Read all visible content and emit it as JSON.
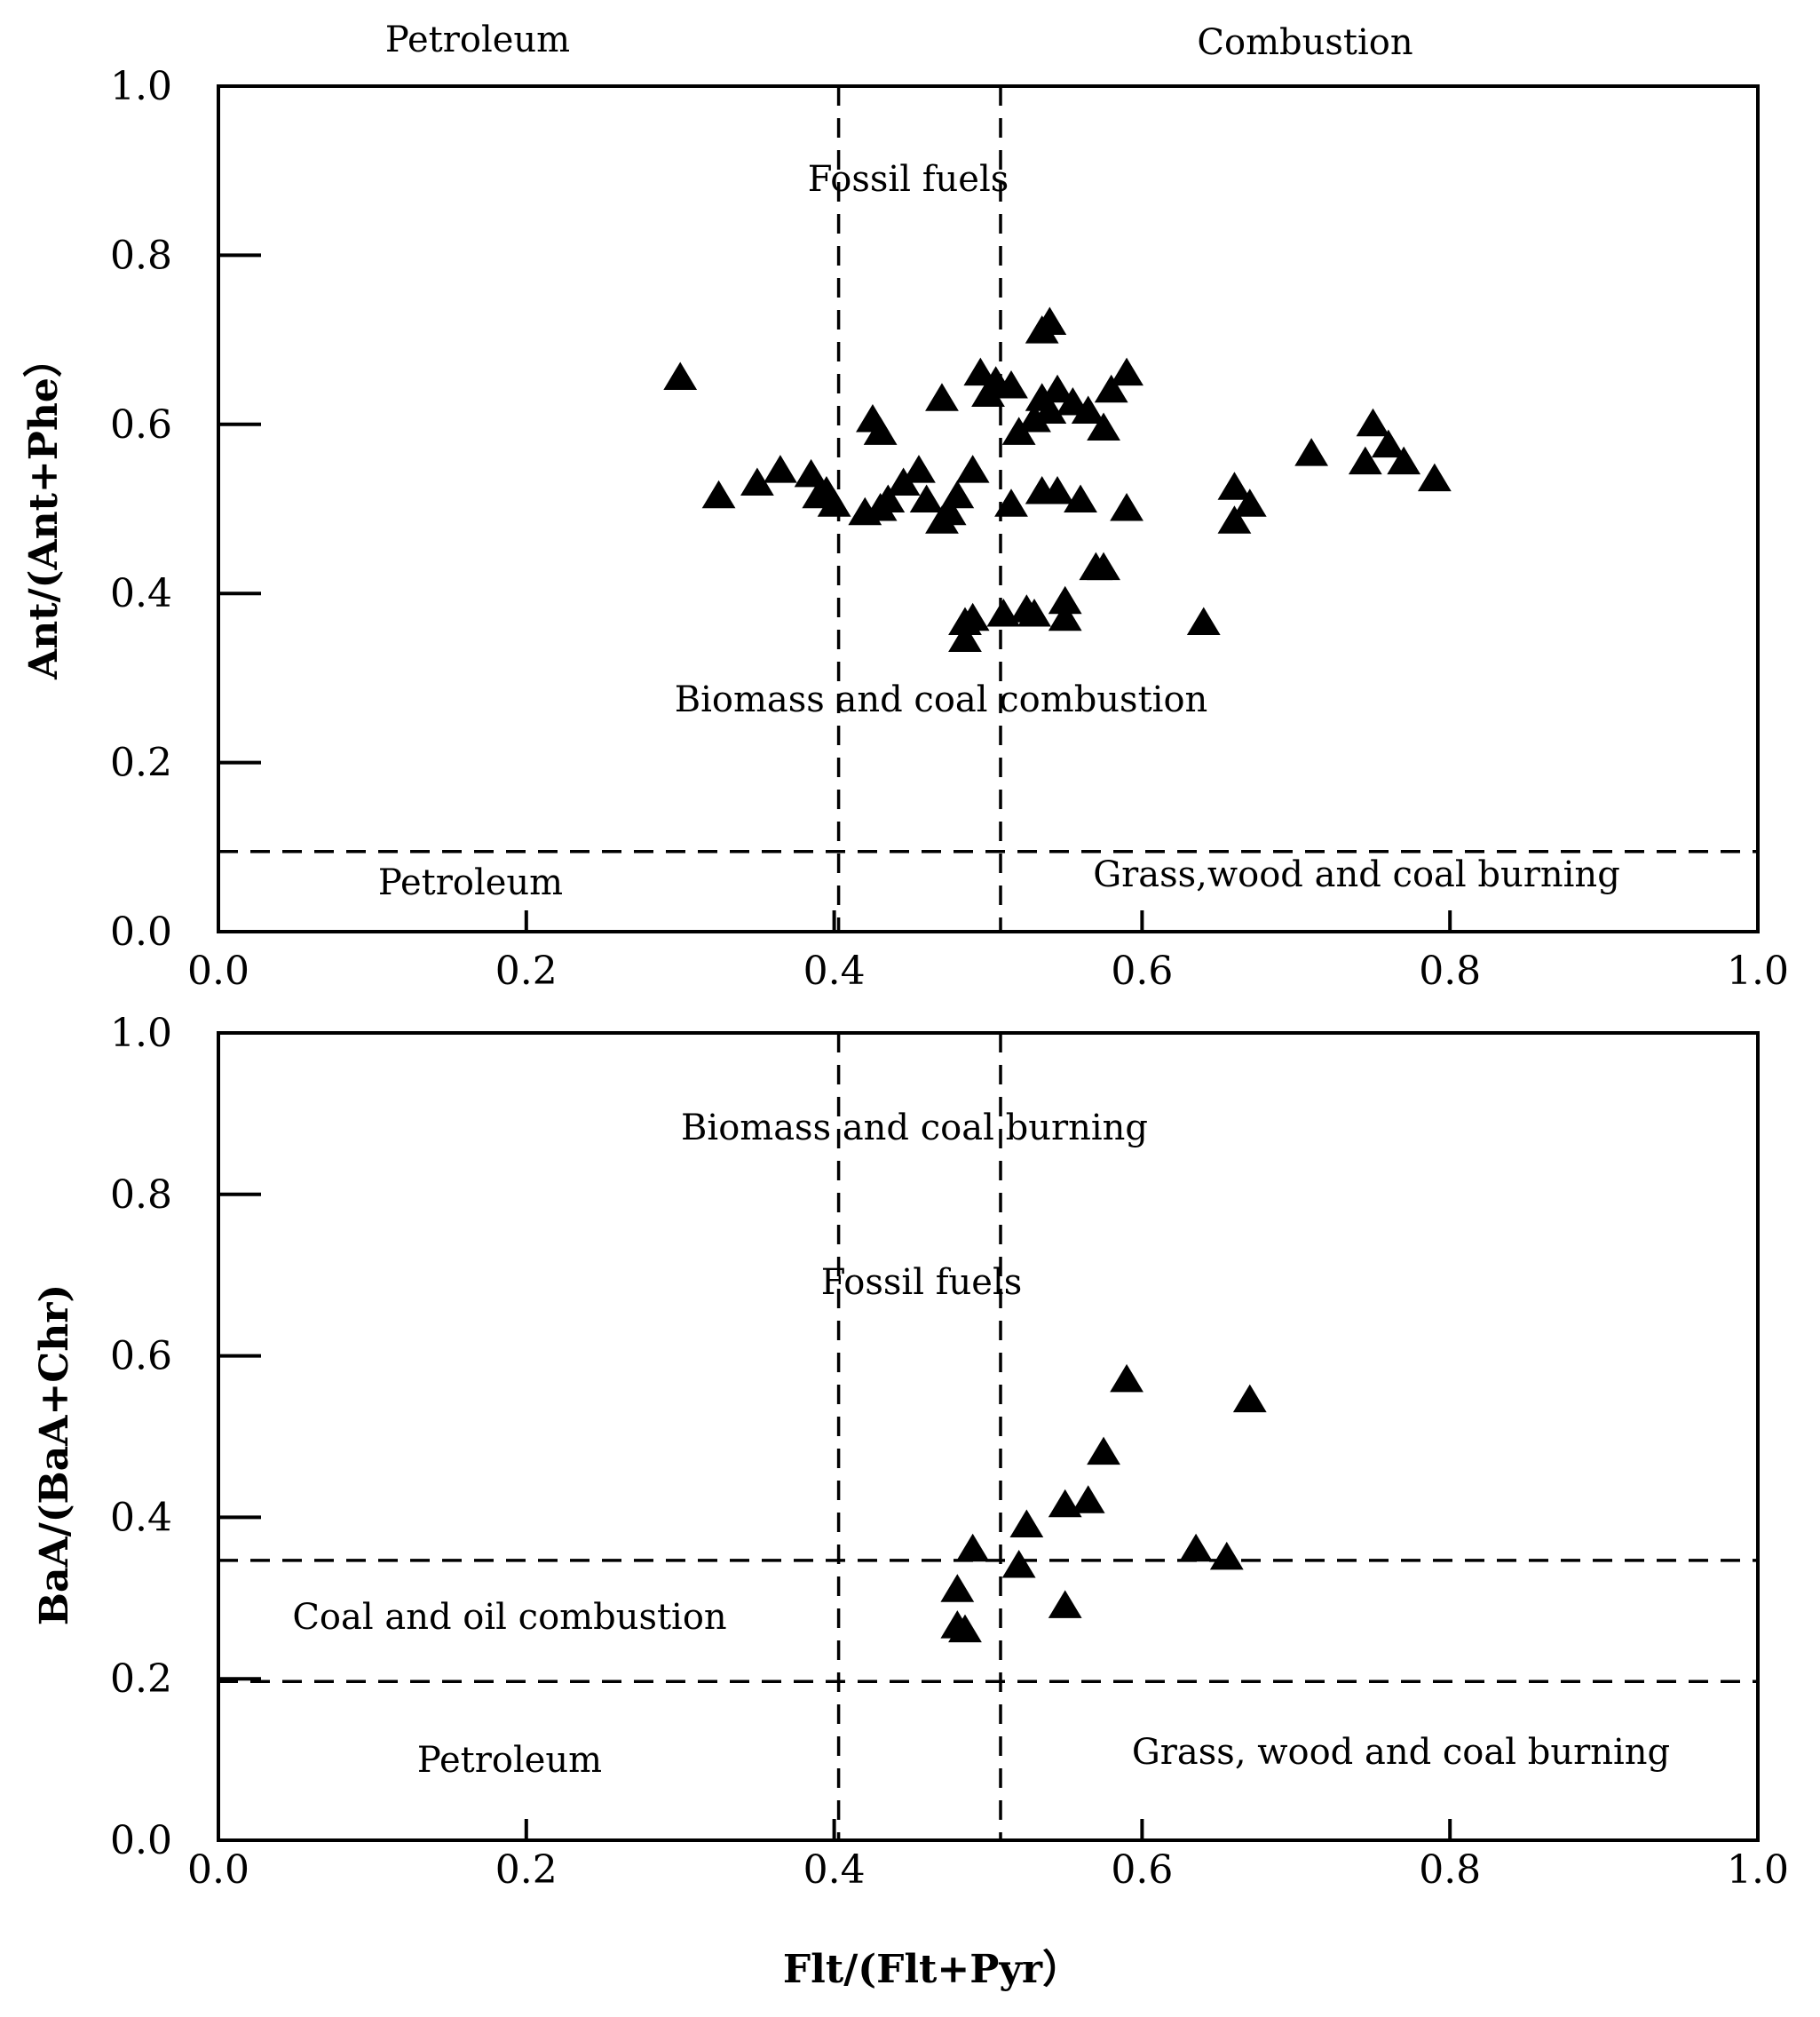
{
  "chart_data": [
    {
      "type": "scatter",
      "id": "top",
      "xlabel": "",
      "ylabel": "Ant/(Ant+Phe）",
      "xlim": [
        0,
        1
      ],
      "ylim": [
        0,
        1
      ],
      "xticks": [
        "0.0",
        "0.2",
        "0.4",
        "0.6",
        "0.8",
        "1.0"
      ],
      "yticks": [
        "0.0",
        "0.2",
        "0.4",
        "0.6",
        "0.8",
        "1.0"
      ],
      "vlines": [
        0.4,
        0.5
      ],
      "hlines": [
        0.1
      ],
      "region_labels": {
        "top_left": "Petroleum",
        "top_right": "Combustion",
        "fossil": "Fossil fuels",
        "biomass": "Biomass and coal combustion",
        "bottom_left": "Petroleum",
        "bottom_right": "Grass,wood and coal burning"
      },
      "series": [
        {
          "name": "samples",
          "marker": "triangle",
          "points": [
            [
              0.3,
              0.655
            ],
            [
              0.325,
              0.515
            ],
            [
              0.35,
              0.53
            ],
            [
              0.365,
              0.545
            ],
            [
              0.385,
              0.54
            ],
            [
              0.39,
              0.515
            ],
            [
              0.395,
              0.52
            ],
            [
              0.4,
              0.505
            ],
            [
              0.42,
              0.495
            ],
            [
              0.425,
              0.605
            ],
            [
              0.43,
              0.5
            ],
            [
              0.43,
              0.59
            ],
            [
              0.435,
              0.51
            ],
            [
              0.445,
              0.53
            ],
            [
              0.455,
              0.545
            ],
            [
              0.46,
              0.51
            ],
            [
              0.47,
              0.485
            ],
            [
              0.47,
              0.63
            ],
            [
              0.475,
              0.495
            ],
            [
              0.48,
              0.515
            ],
            [
              0.485,
              0.345
            ],
            [
              0.485,
              0.365
            ],
            [
              0.49,
              0.37
            ],
            [
              0.49,
              0.545
            ],
            [
              0.495,
              0.66
            ],
            [
              0.5,
              0.635
            ],
            [
              0.505,
              0.65
            ],
            [
              0.51,
              0.375
            ],
            [
              0.515,
              0.505
            ],
            [
              0.515,
              0.645
            ],
            [
              0.52,
              0.59
            ],
            [
              0.525,
              0.38
            ],
            [
              0.53,
              0.375
            ],
            [
              0.53,
              0.605
            ],
            [
              0.535,
              0.63
            ],
            [
              0.535,
              0.52
            ],
            [
              0.535,
              0.71
            ],
            [
              0.54,
              0.72
            ],
            [
              0.54,
              0.615
            ],
            [
              0.545,
              0.52
            ],
            [
              0.545,
              0.64
            ],
            [
              0.55,
              0.39
            ],
            [
              0.55,
              0.37
            ],
            [
              0.555,
              0.625
            ],
            [
              0.56,
              0.51
            ],
            [
              0.565,
              0.615
            ],
            [
              0.57,
              0.43
            ],
            [
              0.575,
              0.43
            ],
            [
              0.575,
              0.595
            ],
            [
              0.58,
              0.64
            ],
            [
              0.59,
              0.66
            ],
            [
              0.59,
              0.5
            ],
            [
              0.64,
              0.365
            ],
            [
              0.66,
              0.485
            ],
            [
              0.66,
              0.525
            ],
            [
              0.67,
              0.505
            ],
            [
              0.71,
              0.565
            ],
            [
              0.745,
              0.555
            ],
            [
              0.75,
              0.6
            ],
            [
              0.76,
              0.575
            ],
            [
              0.77,
              0.555
            ],
            [
              0.79,
              0.535
            ]
          ]
        }
      ]
    },
    {
      "type": "scatter",
      "id": "bottom",
      "xlabel": "Flt/(Flt+Pyr）",
      "ylabel": "BaA/(BaA+Chr)",
      "xlim": [
        0,
        1
      ],
      "ylim": [
        0,
        1
      ],
      "xticks": [
        "0.0",
        "0.2",
        "0.4",
        "0.6",
        "0.8",
        "1.0"
      ],
      "yticks": [
        "0.0",
        "0.2",
        "0.4",
        "0.6",
        "0.8",
        "1.0"
      ],
      "vlines": [
        0.4,
        0.5
      ],
      "hlines": [
        0.35,
        0.2
      ],
      "region_labels": {
        "biomass": "Biomass and coal burning",
        "fossil": "Fossil fuels",
        "coal_oil": "Coal and oil combustion",
        "bottom_left": "Petroleum",
        "bottom_right": "Grass, wood and coal burning"
      },
      "series": [
        {
          "name": "samples",
          "marker": "triangle",
          "points": [
            [
              0.48,
              0.31
            ],
            [
              0.48,
              0.265
            ],
            [
              0.485,
              0.26
            ],
            [
              0.49,
              0.36
            ],
            [
              0.52,
              0.34
            ],
            [
              0.525,
              0.39
            ],
            [
              0.55,
              0.29
            ],
            [
              0.55,
              0.415
            ],
            [
              0.565,
              0.42
            ],
            [
              0.575,
              0.48
            ],
            [
              0.59,
              0.57
            ],
            [
              0.635,
              0.36
            ],
            [
              0.655,
              0.35
            ],
            [
              0.67,
              0.545
            ]
          ]
        }
      ]
    }
  ]
}
